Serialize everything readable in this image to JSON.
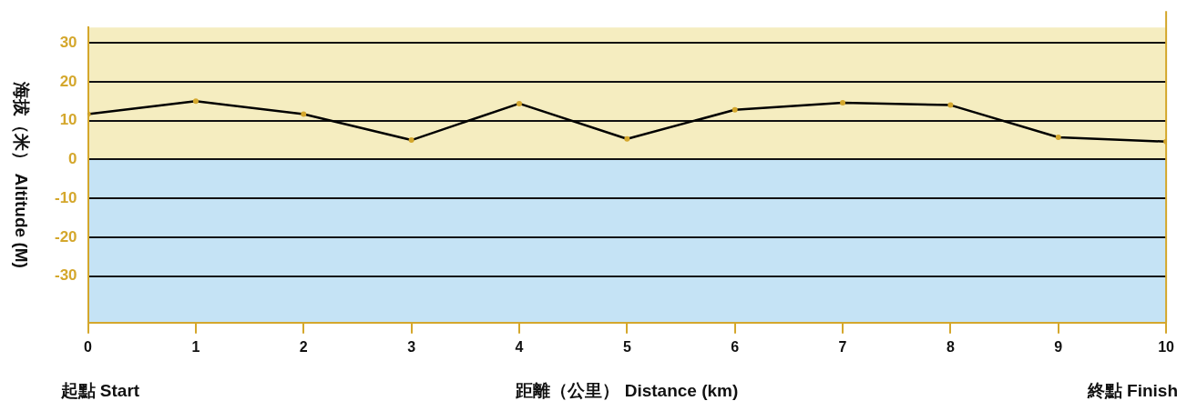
{
  "chart_data": {
    "type": "line",
    "xlabel": "距離（公里） Distance (km)",
    "ylabel": "海拔（米） Altitude (M)",
    "annotations": [
      "起點 Start",
      "終點 Finish"
    ],
    "x": [
      0,
      1,
      2,
      3,
      4,
      5,
      6,
      7,
      8,
      9,
      10
    ],
    "series": [
      {
        "color": "#000000",
        "values": [
          11.7,
          15,
          11.7,
          5,
          14.4,
          5.3,
          12.8,
          14.6,
          14,
          5.7,
          4.6
        ]
      }
    ],
    "marker": "circle",
    "line_style": "solid",
    "grid": "y",
    "legend": false,
    "xlim": [
      0,
      10
    ],
    "xticks": [
      0,
      1,
      2,
      3,
      4,
      5,
      6,
      7,
      8,
      9,
      10
    ],
    "ylim": [
      -42,
      34
    ],
    "yticks": [
      -30,
      -20,
      -10,
      0,
      10,
      20,
      30
    ],
    "bands": [
      {
        "axis": "y",
        "from": 0,
        "to": 34,
        "color": "#f5edc0"
      },
      {
        "axis": "y",
        "from": -42,
        "to": 0,
        "color": "#c5e3f5"
      }
    ],
    "ref_lines": [
      {
        "axis": "x",
        "value": 10,
        "color": "#d4a72c"
      }
    ]
  }
}
